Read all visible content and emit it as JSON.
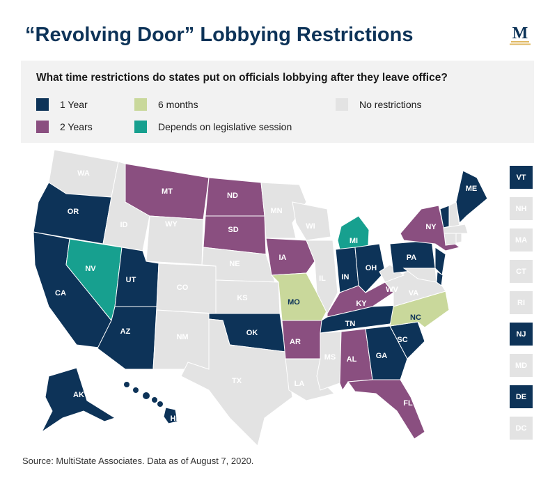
{
  "title": "“Revolving Door” Lobbying Restrictions",
  "logo_text": "M",
  "legend": {
    "question": "What time restrictions do states put on officials lobbying after they leave office?",
    "items": [
      {
        "key": "1y",
        "label": "1 Year",
        "color": "#0d3358"
      },
      {
        "key": "6m",
        "label": "6 months",
        "color": "#c9d89b"
      },
      {
        "key": "none",
        "label": "No restrictions",
        "color": "#e3e3e3"
      },
      {
        "key": "2y",
        "label": "2 Years",
        "color": "#8a4f80"
      },
      {
        "key": "dep",
        "label": "Depends on legislative session",
        "color": "#17a08f"
      }
    ]
  },
  "states": [
    {
      "abbr": "WA",
      "cat": "none"
    },
    {
      "abbr": "OR",
      "cat": "1y"
    },
    {
      "abbr": "CA",
      "cat": "1y"
    },
    {
      "abbr": "NV",
      "cat": "dep"
    },
    {
      "abbr": "ID",
      "cat": "none"
    },
    {
      "abbr": "MT",
      "cat": "2y"
    },
    {
      "abbr": "WY",
      "cat": "none"
    },
    {
      "abbr": "UT",
      "cat": "1y"
    },
    {
      "abbr": "AZ",
      "cat": "1y"
    },
    {
      "abbr": "CO",
      "cat": "none"
    },
    {
      "abbr": "NM",
      "cat": "none"
    },
    {
      "abbr": "ND",
      "cat": "2y"
    },
    {
      "abbr": "SD",
      "cat": "2y"
    },
    {
      "abbr": "NE",
      "cat": "none"
    },
    {
      "abbr": "KS",
      "cat": "none"
    },
    {
      "abbr": "OK",
      "cat": "1y"
    },
    {
      "abbr": "TX",
      "cat": "none"
    },
    {
      "abbr": "MN",
      "cat": "none"
    },
    {
      "abbr": "IA",
      "cat": "2y"
    },
    {
      "abbr": "MO",
      "cat": "6m"
    },
    {
      "abbr": "AR",
      "cat": "2y"
    },
    {
      "abbr": "LA",
      "cat": "none"
    },
    {
      "abbr": "WI",
      "cat": "none"
    },
    {
      "abbr": "IL",
      "cat": "none"
    },
    {
      "abbr": "MI",
      "cat": "dep"
    },
    {
      "abbr": "IN",
      "cat": "1y"
    },
    {
      "abbr": "OH",
      "cat": "1y"
    },
    {
      "abbr": "KY",
      "cat": "2y"
    },
    {
      "abbr": "TN",
      "cat": "1y"
    },
    {
      "abbr": "MS",
      "cat": "none"
    },
    {
      "abbr": "AL",
      "cat": "2y"
    },
    {
      "abbr": "GA",
      "cat": "1y"
    },
    {
      "abbr": "FL",
      "cat": "2y"
    },
    {
      "abbr": "SC",
      "cat": "1y"
    },
    {
      "abbr": "NC",
      "cat": "6m"
    },
    {
      "abbr": "VA",
      "cat": "none"
    },
    {
      "abbr": "WV",
      "cat": "none"
    },
    {
      "abbr": "PA",
      "cat": "1y"
    },
    {
      "abbr": "NY",
      "cat": "2y"
    },
    {
      "abbr": "ME",
      "cat": "1y"
    },
    {
      "abbr": "AK",
      "cat": "1y"
    },
    {
      "abbr": "HI",
      "cat": "1y"
    },
    {
      "abbr": "NJ",
      "cat": "1y"
    },
    {
      "abbr": "DE",
      "cat": "1y"
    },
    {
      "abbr": "MD",
      "cat": "none"
    },
    {
      "abbr": "VT",
      "cat": "1y"
    },
    {
      "abbr": "NH",
      "cat": "none"
    },
    {
      "abbr": "MA",
      "cat": "none"
    },
    {
      "abbr": "CT",
      "cat": "none"
    },
    {
      "abbr": "RI",
      "cat": "none"
    }
  ],
  "side_tiles": [
    {
      "abbr": "VT",
      "cat": "1y"
    },
    {
      "abbr": "NH",
      "cat": "none"
    },
    {
      "abbr": "MA",
      "cat": "none"
    },
    {
      "abbr": "CT",
      "cat": "none"
    },
    {
      "abbr": "RI",
      "cat": "none"
    },
    {
      "abbr": "NJ",
      "cat": "1y"
    },
    {
      "abbr": "MD",
      "cat": "none"
    },
    {
      "abbr": "DE",
      "cat": "1y"
    },
    {
      "abbr": "DC",
      "cat": "none"
    }
  ],
  "source": "Source: MultiState Associates. Data as of August 7, 2020."
}
